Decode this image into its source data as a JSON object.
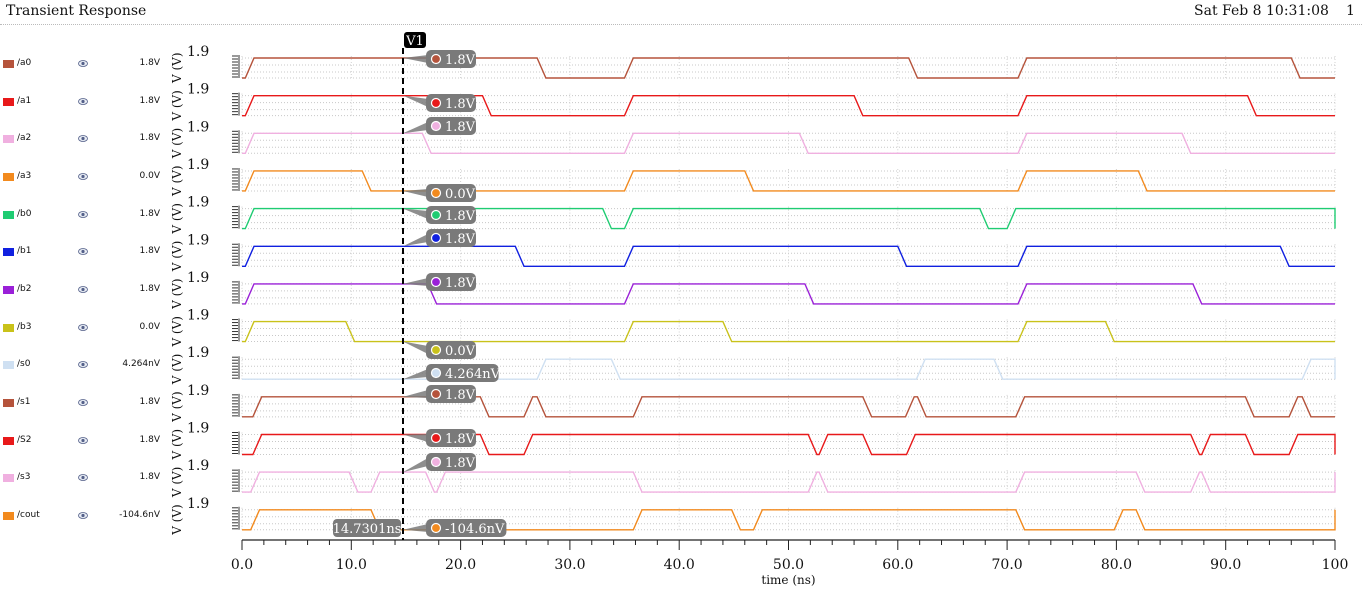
{
  "header": {
    "title": "Transient Response",
    "datetime": "Sat Feb 8 10:31:08",
    "page": "1"
  },
  "colors": {
    "a0": "#b5533b",
    "a1": "#e8191a",
    "a2": "#f0b0e0",
    "a3": "#f28a1e",
    "b0": "#1fcc72",
    "b1": "#1020e0",
    "b2": "#9a20d8",
    "b3": "#c9c21a",
    "s0": "#cfe0f2",
    "s1": "#b5533b",
    "S2": "#e8191a",
    "s3": "#f0b0e0",
    "cout": "#f28a1e",
    "cursor": "#000000",
    "marker_label": "#7a7a7a"
  },
  "chart_data": {
    "type": "line",
    "xlabel": "time (ns)",
    "xlim": [
      0,
      100
    ],
    "x_ticks": [
      "0.0",
      "10.0",
      "20.0",
      "30.0",
      "40.0",
      "50.0",
      "60.0",
      "70.0",
      "80.0",
      "90.0",
      "100"
    ],
    "y_unit_label": "V (V)",
    "y_top_label": "1.9",
    "cursor": {
      "name": "V1",
      "x": 14.7301,
      "x_label": "14.7301ns"
    },
    "series": [
      {
        "name": "/a0",
        "value_label": "1.8V",
        "initial": 0,
        "transitions": [
          0.3,
          27,
          35,
          61,
          71,
          96
        ]
      },
      {
        "name": "/a1",
        "value_label": "1.8V",
        "initial": 0,
        "transitions": [
          0.3,
          22,
          35,
          56,
          71,
          92
        ]
      },
      {
        "name": "/a2",
        "value_label": "1.8V",
        "initial": 0,
        "transitions": [
          0.3,
          16.5,
          35,
          51,
          71,
          86
        ]
      },
      {
        "name": "/a3",
        "value_label": "0.0V",
        "initial": 0,
        "transitions": [
          0.3,
          11,
          35,
          46,
          71,
          82
        ]
      },
      {
        "name": "/b0",
        "value_label": "1.8V",
        "initial": 0,
        "transitions": [
          0.3,
          33,
          35,
          67.5,
          70,
          100
        ]
      },
      {
        "name": "/b1",
        "value_label": "1.8V",
        "initial": 0,
        "transitions": [
          0.3,
          25,
          35,
          60,
          71,
          95
        ]
      },
      {
        "name": "/b2",
        "value_label": "1.8V",
        "initial": 0,
        "transitions": [
          0.3,
          17,
          35,
          51.5,
          71,
          87
        ]
      },
      {
        "name": "/b3",
        "value_label": "0.0V",
        "initial": 0,
        "transitions": [
          0.3,
          9.5,
          35,
          44,
          71,
          79
        ]
      },
      {
        "name": "/s0",
        "value_label": "4.264nV",
        "initial": 0,
        "transitions": [
          27,
          33.8,
          61.7,
          68.8,
          97,
          100
        ]
      },
      {
        "name": "/s1",
        "value_label": "1.8V",
        "initial": 0,
        "transitions": [
          1,
          21.8,
          25.8,
          27,
          35.8,
          56.8,
          60.7,
          61.8,
          70.8,
          91.8,
          95.8,
          97
        ]
      },
      {
        "name": "/S2",
        "value_label": "1.8V",
        "initial": 0,
        "transitions": [
          1,
          21.8,
          25.8,
          51.8,
          52.8,
          56.8,
          60.8,
          86.8,
          87.8,
          91.8,
          95.8,
          100
        ]
      },
      {
        "name": "/s3",
        "value_label": "1.8V",
        "initial": 0,
        "transitions": [
          0.8,
          9.8,
          11.8,
          16.8,
          17.8,
          35.8,
          51.8,
          52.8,
          70.8,
          81.8,
          86.8,
          87.8,
          100
        ]
      },
      {
        "name": "/cout",
        "value_label": "-104.6nV",
        "initial": 0,
        "transitions": [
          0.8,
          11.8,
          35.8,
          44.8,
          46.8,
          70.8,
          79.8,
          81.8,
          100
        ]
      }
    ]
  }
}
